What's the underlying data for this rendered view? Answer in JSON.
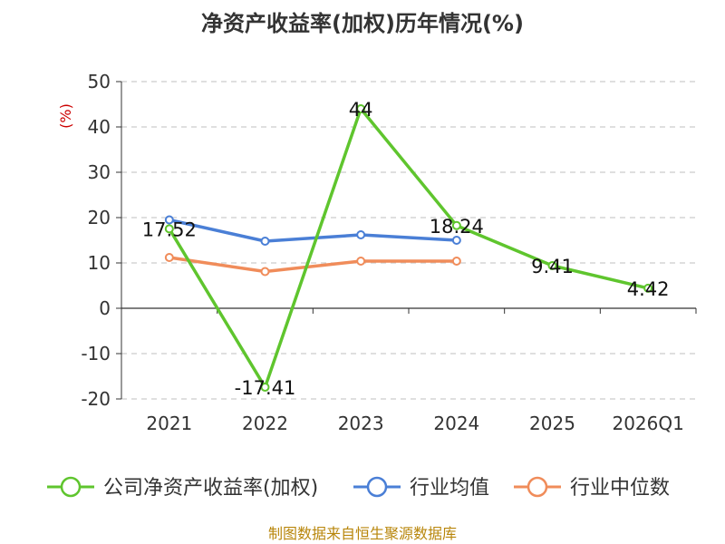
{
  "chart_data": {
    "type": "line",
    "title": "净资产收益率(加权)历年情况(%)",
    "ylabel": "(%)",
    "categories": [
      "2021",
      "2022",
      "2023",
      "2024",
      "2025",
      "2026Q1"
    ],
    "ylim": [
      -20,
      50
    ],
    "yticks": [
      50,
      40,
      30,
      20,
      10,
      0,
      -10,
      -20
    ],
    "grid": true,
    "legend_position": "bottom",
    "series": [
      {
        "name": "公司净资产收益率(加权)",
        "color": "#5fc52e",
        "values": [
          17.52,
          -17.41,
          44,
          18.24,
          9.41,
          4.42
        ],
        "labels": [
          "17.52",
          "-17.41",
          "44",
          "18.24",
          "9.41",
          "4.42"
        ]
      },
      {
        "name": "行业均值",
        "color": "#4a7fd6",
        "values": [
          19.5,
          14.8,
          16.2,
          15.0,
          null,
          null
        ]
      },
      {
        "name": "行业中位数",
        "color": "#f08c5a",
        "values": [
          11.2,
          8.1,
          10.4,
          10.4,
          null,
          null
        ]
      }
    ]
  },
  "source": "制图数据来自恒生聚源数据库"
}
